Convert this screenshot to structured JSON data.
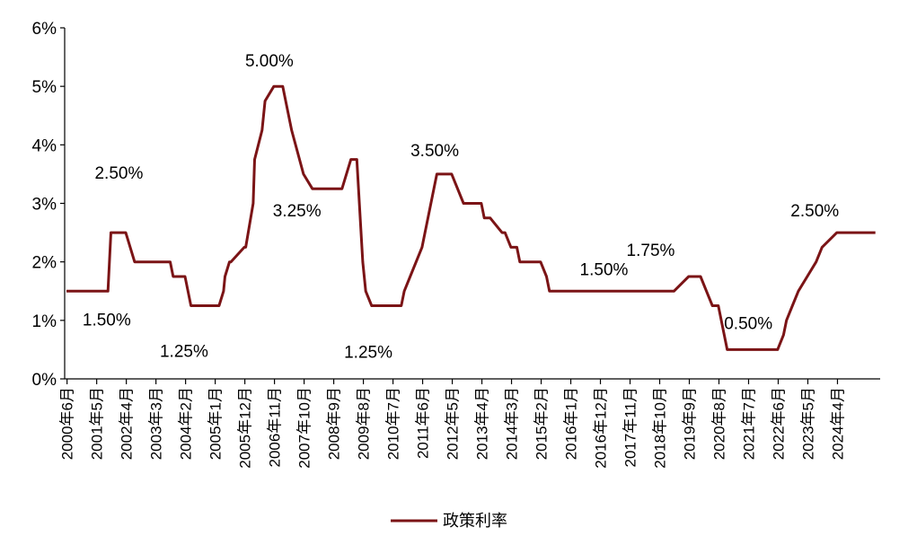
{
  "chart_data": {
    "type": "line",
    "title": "",
    "xlabel": "",
    "ylabel": "",
    "ylim": [
      0,
      6
    ],
    "yticks": [
      "0%",
      "1%",
      "2%",
      "3%",
      "4%",
      "5%",
      "6%"
    ],
    "categories": [
      "2000年6月",
      "2001年5月",
      "2002年4月",
      "2003年3月",
      "2004年2月",
      "2005年1月",
      "2005年12月",
      "2006年11月",
      "2007年10月",
      "2008年9月",
      "2009年8月",
      "2010年7月",
      "2011年6月",
      "2012年5月",
      "2013年4月",
      "2014年3月",
      "2015年2月",
      "2016年1月",
      "2016年12月",
      "2017年11月",
      "2018年10月",
      "2019年9月",
      "2020年8月",
      "2021年7月",
      "2022年6月",
      "2023年5月",
      "2024年4月"
    ],
    "grid": false,
    "legend_position": "bottom",
    "line_color": "#7b1416",
    "series": [
      {
        "name": "政策利率",
        "x": [
          0,
          0.1,
          1.0,
          1.4,
          1.5,
          2.0,
          2.3,
          3.0,
          3.5,
          3.6,
          4.0,
          4.2,
          4.4,
          5.0,
          5.15,
          5.3,
          5.35,
          5.5,
          5.55,
          6.0,
          6.05,
          6.3,
          6.35,
          6.6,
          6.7,
          7.0,
          7.3,
          7.4,
          7.6,
          8.0,
          8.3,
          8.5,
          8.6,
          8.8,
          9.3,
          9.6,
          9.8,
          10.0,
          10.1,
          10.3,
          10.6,
          10.7,
          11.0,
          11.3,
          11.4,
          11.6,
          12.0,
          12.1,
          12.2,
          12.4,
          12.5,
          13.0,
          13.4,
          13.5,
          13.6,
          14.0,
          14.1,
          14.3,
          14.7,
          14.8,
          15.0,
          15.2,
          15.3,
          15.7,
          15.9,
          16.0,
          16.2,
          16.3,
          16.6,
          17.0,
          18.0,
          19.0,
          20.0,
          20.3,
          20.5,
          21.0,
          21.2,
          21.4,
          21.6,
          21.8,
          22.0,
          22.3,
          22.8,
          23.0,
          24.0,
          24.2,
          24.3,
          24.5,
          24.7,
          25.0,
          25.3,
          25.5,
          26.0,
          26.2,
          26.5,
          26.8,
          27.3
        ],
        "values": [
          1.5,
          1.5,
          1.5,
          1.5,
          2.5,
          2.5,
          2.0,
          2.0,
          2.0,
          1.75,
          1.75,
          1.25,
          1.25,
          1.25,
          1.25,
          1.5,
          1.75,
          2.0,
          2.0,
          2.25,
          2.25,
          3.0,
          3.75,
          4.25,
          4.75,
          5.0,
          5.0,
          4.75,
          4.25,
          3.5,
          3.25,
          3.25,
          3.25,
          3.25,
          3.25,
          3.75,
          3.75,
          2.0,
          1.5,
          1.25,
          1.25,
          1.25,
          1.25,
          1.25,
          1.5,
          1.75,
          2.25,
          2.5,
          2.75,
          3.25,
          3.5,
          3.5,
          3.0,
          3.0,
          3.0,
          3.0,
          2.75,
          2.75,
          2.5,
          2.5,
          2.25,
          2.25,
          2.0,
          2.0,
          2.0,
          2.0,
          1.75,
          1.5,
          1.5,
          1.5,
          1.5,
          1.5,
          1.5,
          1.5,
          1.5,
          1.75,
          1.75,
          1.75,
          1.5,
          1.25,
          1.25,
          0.5,
          0.5,
          0.5,
          0.5,
          0.75,
          1.0,
          1.25,
          1.5,
          1.75,
          2.0,
          2.25,
          2.5,
          2.5,
          2.5,
          2.5,
          2.5
        ]
      }
    ],
    "annotations": [
      {
        "text": "1.50%",
        "x": 0.3,
        "y": 1.5
      },
      {
        "text": "2.50%",
        "x": 1.5,
        "y": 2.5
      },
      {
        "text": "1.25%",
        "x": 4.0,
        "y": 1.25
      },
      {
        "text": "5.00%",
        "x": 7.0,
        "y": 5.0
      },
      {
        "text": "3.25%",
        "x": 8.6,
        "y": 3.25
      },
      {
        "text": "1.25%",
        "x": 10.4,
        "y": 1.25
      },
      {
        "text": "3.50%",
        "x": 12.4,
        "y": 3.5
      },
      {
        "text": "1.50%",
        "x": 18.9,
        "y": 1.5
      },
      {
        "text": "1.75%",
        "x": 20.9,
        "y": 1.75
      },
      {
        "text": "0.50%",
        "x": 22.8,
        "y": 0.5
      },
      {
        "text": "2.50%",
        "x": 26.5,
        "y": 2.5
      }
    ]
  }
}
